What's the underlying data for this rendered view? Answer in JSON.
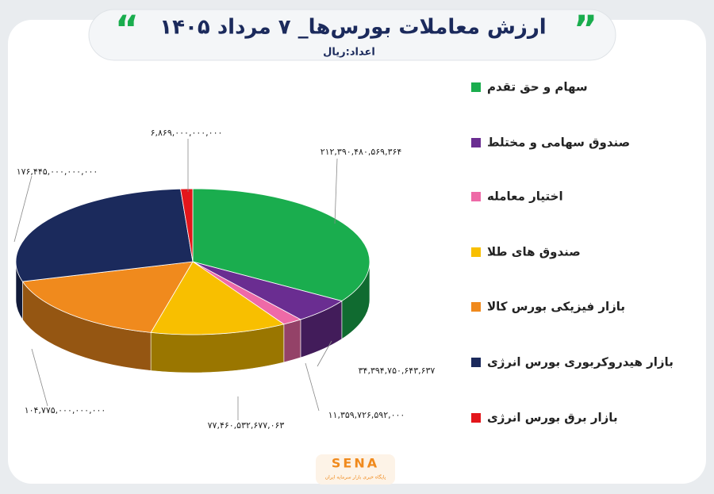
{
  "chart_data": {
    "type": "pie3d",
    "title": "ارزش معاملات بورس‌ها_ ۷ مرداد ۱۴۰۵",
    "subtitle": "اعداد:ریال",
    "categories": [
      "سهام و حق تقدم",
      "صندوق سهامی و مختلط",
      "اختیار معامله",
      "صندوق های طلا",
      "بازار فیزیکی بورس کالا",
      "بازار هیدروکربوری بورس انرژی",
      "بازار برق بورس انرژی"
    ],
    "values": [
      212390480569364,
      34394750643637,
      11359726592000,
      77460532677063,
      104775000000000,
      176445000000000,
      6869000000000
    ],
    "value_labels": [
      "۲۱۲,۳۹۰,۴۸۰,۵۶۹,۳۶۴",
      "۳۴,۳۹۴,۷۵۰,۶۴۳,۶۳۷",
      "۱۱,۳۵۹,۷۲۶,۵۹۲,۰۰۰",
      "۷۷,۴۶۰,۵۳۲,۶۷۷,۰۶۳",
      "۱۰۴,۷۷۵,۰۰۰,۰۰۰,۰۰۰",
      "۱۷۶,۴۴۵,۰۰۰,۰۰۰,۰۰۰",
      "۶,۸۶۹,۰۰۰,۰۰۰,۰۰۰"
    ],
    "colors": [
      "#1aad4e",
      "#6a2d91",
      "#ee6aa7",
      "#f8bf00",
      "#f08a1d",
      "#1b2a5c",
      "#e3161b"
    ],
    "logo": "SENA",
    "logo_tagline": "پایگاه خبری بازار سرمایه ایران"
  }
}
